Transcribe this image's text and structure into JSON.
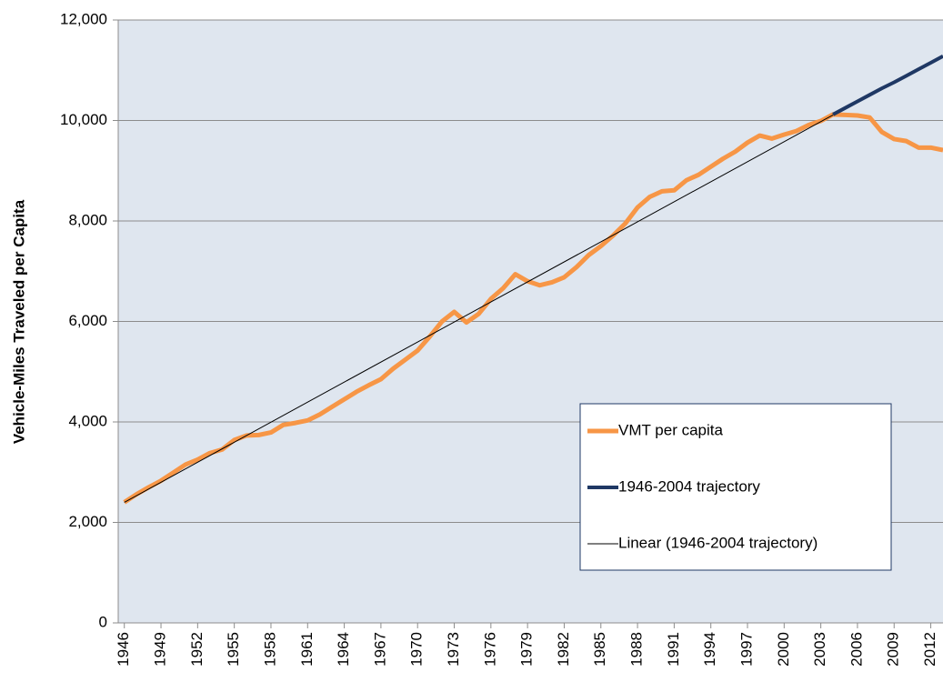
{
  "chart_data": {
    "type": "line",
    "y_label": "Vehicle-Miles Traveled per Capita",
    "x": [
      1946,
      1947,
      1948,
      1949,
      1950,
      1951,
      1952,
      1953,
      1954,
      1955,
      1956,
      1957,
      1958,
      1959,
      1960,
      1961,
      1962,
      1963,
      1964,
      1965,
      1966,
      1967,
      1968,
      1969,
      1970,
      1971,
      1972,
      1973,
      1974,
      1975,
      1976,
      1977,
      1978,
      1979,
      1980,
      1981,
      1982,
      1983,
      1984,
      1985,
      1986,
      1987,
      1988,
      1989,
      1990,
      1991,
      1992,
      1993,
      1994,
      1995,
      1996,
      1997,
      1998,
      1999,
      2000,
      2001,
      2002,
      2003,
      2004,
      2005,
      2006,
      2007,
      2008,
      2009,
      2010,
      2011,
      2012,
      2013
    ],
    "series": [
      {
        "name": "VMT per capita",
        "color": "#f79646",
        "width": 5,
        "values": [
          2400,
          2560,
          2700,
          2830,
          2990,
          3150,
          3250,
          3380,
          3450,
          3640,
          3730,
          3740,
          3790,
          3940,
          3980,
          4030,
          4150,
          4300,
          4450,
          4600,
          4730,
          4850,
          5060,
          5240,
          5420,
          5700,
          6000,
          6190,
          5980,
          6150,
          6450,
          6660,
          6940,
          6800,
          6720,
          6780,
          6880,
          7080,
          7320,
          7500,
          7710,
          7950,
          8270,
          8480,
          8590,
          8610,
          8810,
          8920,
          9080,
          9240,
          9380,
          9560,
          9700,
          9640,
          9720,
          9790,
          9910,
          9990,
          10120,
          10110,
          10100,
          10060,
          9770,
          9630,
          9590,
          9460,
          9460,
          9410
        ]
      },
      {
        "name": "1946-2004 trajectory",
        "color": "#1f3864",
        "width": 4,
        "x": [
          2004,
          2005,
          2006,
          2007,
          2008,
          2009,
          2010,
          2011,
          2012,
          2013
        ],
        "values": [
          10120,
          10250,
          10380,
          10510,
          10640,
          10760,
          10890,
          11020,
          11150,
          11280
        ]
      },
      {
        "name": "Linear (1946-2004 trajectory)",
        "color": "#000000",
        "width": 1,
        "x": [
          1946,
          2004
        ],
        "values": [
          2400,
          10110
        ]
      }
    ],
    "xlim": [
      1945.5,
      2013
    ],
    "xticks": [
      1946,
      1949,
      1952,
      1955,
      1958,
      1961,
      1964,
      1967,
      1970,
      1973,
      1976,
      1979,
      1982,
      1985,
      1988,
      1991,
      1994,
      1997,
      2000,
      2003,
      2006,
      2009,
      2012
    ],
    "ylim": [
      0,
      12000
    ],
    "yticks": [
      0,
      {
        "value": 2000,
        "label": "2,000"
      },
      {
        "value": 4000,
        "label": "4,000"
      },
      {
        "value": 6000,
        "label": "6,000"
      },
      {
        "value": 8000,
        "label": "8,000"
      },
      {
        "value": 10000,
        "label": "10,000"
      },
      {
        "value": 12000,
        "label": "12,000"
      }
    ],
    "grid": true,
    "plot_background": "#dfe6ef",
    "legend_position": "lower right"
  }
}
